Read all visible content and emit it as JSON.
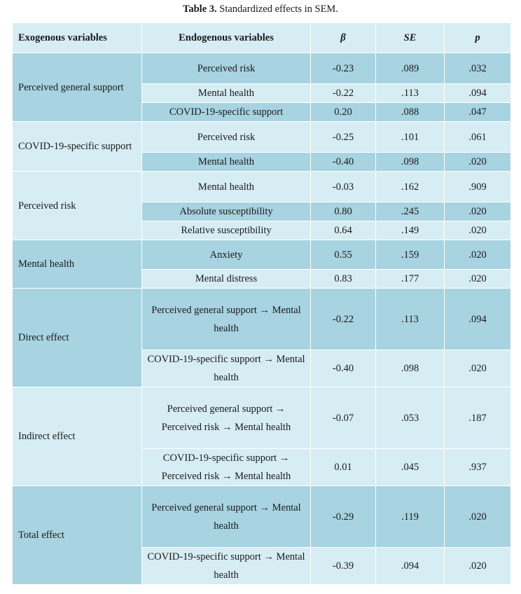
{
  "caption": {
    "label": "Table 3.",
    "text": " Standardized effects in SEM."
  },
  "headers": [
    "Exogenous variables",
    "Endogenous variables",
    "β",
    "SE",
    "p"
  ],
  "groups": [
    {
      "exo": "Perceived general support",
      "tone": "dark",
      "rows": [
        {
          "endo": "Perceived risk",
          "beta": "-0.23",
          "se": ".089",
          "p": ".032",
          "h": 44,
          "tone": "dark"
        },
        {
          "endo": "Mental health",
          "beta": "-0.22",
          "se": ".113",
          "p": ".094",
          "h": 27,
          "tone": "light"
        },
        {
          "endo": "COVID-19-specific support",
          "beta": "0.20",
          "se": ".088",
          "p": ".047",
          "h": 27,
          "tone": "dark"
        }
      ]
    },
    {
      "exo": "COVID-19-specific support",
      "tone": "light",
      "rows": [
        {
          "endo": "Perceived risk",
          "beta": "-0.25",
          "se": ".101",
          "p": ".061",
          "h": 44,
          "tone": "light"
        },
        {
          "endo": "Mental health",
          "beta": "-0.40",
          "se": ".098",
          "p": ".020",
          "h": 27,
          "tone": "dark"
        }
      ]
    },
    {
      "exo": "Perceived risk",
      "tone": "light",
      "rows": [
        {
          "endo": "Mental health",
          "beta": "-0.03",
          "se": ".162",
          "p": ".909",
          "h": 44,
          "tone": "light"
        },
        {
          "endo": "Absolute susceptibility",
          "beta": "0.80",
          "se": ".245",
          "p": ".020",
          "h": 27,
          "tone": "dark"
        },
        {
          "endo": "Relative susceptibility",
          "beta": "0.64",
          "se": ".149",
          "p": ".020",
          "h": 27,
          "tone": "light"
        }
      ]
    },
    {
      "exo": "Mental health",
      "tone": "dark",
      "rows": [
        {
          "endo": "Anxiety",
          "beta": "0.55",
          "se": ".159",
          "p": ".020",
          "h": 42,
          "tone": "dark"
        },
        {
          "endo": "Mental distress",
          "beta": "0.83",
          "se": ".177",
          "p": ".020",
          "h": 27,
          "tone": "light"
        }
      ]
    },
    {
      "exo": "Direct effect",
      "tone": "dark",
      "rows": [
        {
          "endo": "Perceived general support → Mental health",
          "beta": "-0.22",
          "se": ".113",
          "p": ".094",
          "h": 88,
          "tone": "dark"
        },
        {
          "endo": "COVID-19-specific support → Mental health",
          "beta": "-0.40",
          "se": ".098",
          "p": ".020",
          "h": 53,
          "tone": "light"
        }
      ]
    },
    {
      "exo": "Indirect effect",
      "tone": "light",
      "rows": [
        {
          "endo": "Perceived general support → Perceived risk → Mental health",
          "beta": "-0.07",
          "se": ".053",
          "p": ".187",
          "h": 88,
          "tone": "light"
        },
        {
          "endo": "COVID-19-specific support → Perceived risk → Mental health",
          "beta": "0.01",
          "se": ".045",
          "p": ".937",
          "h": 53,
          "tone": "light"
        }
      ]
    },
    {
      "exo": "Total effect",
      "tone": "dark",
      "rows": [
        {
          "endo": "Perceived general support → Mental health",
          "beta": "-0.29",
          "se": ".119",
          "p": ".020",
          "h": 88,
          "tone": "dark"
        },
        {
          "endo": "COVID-19-specific support → Mental health",
          "beta": "-0.39",
          "se": ".094",
          "p": ".020",
          "h": 53,
          "tone": "light"
        }
      ]
    }
  ]
}
